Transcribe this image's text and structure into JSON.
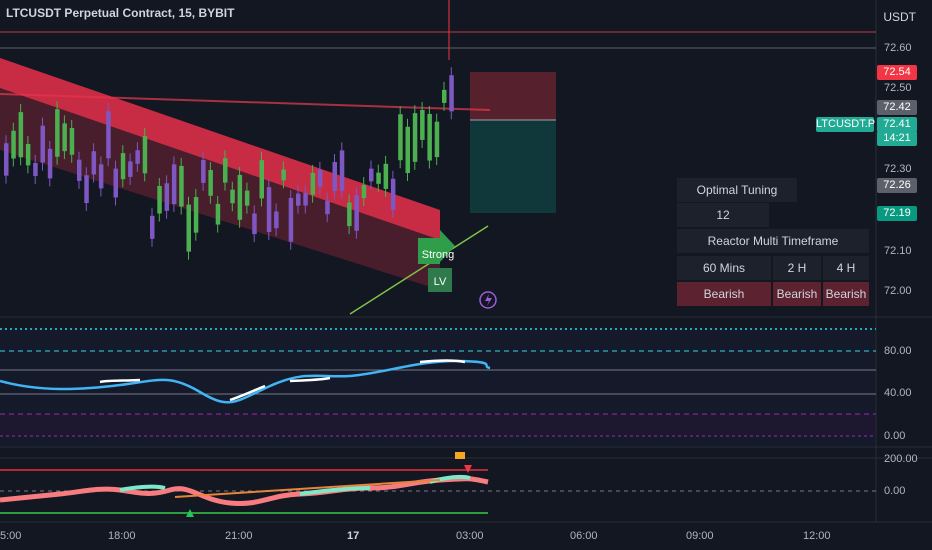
{
  "header": {
    "symbol_title": "LTCUSDT Perpetual Contract, 15, BYBIT",
    "currency": "USDT"
  },
  "price_axis": {
    "ticks": [
      "72.60",
      "72.50",
      "72.30",
      "72.10",
      "72.00"
    ],
    "tags": [
      {
        "label": "72.54",
        "color": "#f23645"
      },
      {
        "label": "72.42",
        "color": "#5d606b"
      },
      {
        "label": "72.41",
        "color": "#22ab94"
      },
      {
        "label": "14:21",
        "color": "#22ab94"
      },
      {
        "label": "72.26",
        "color": "#5d606b"
      },
      {
        "label": "72.19",
        "color": "#089981"
      }
    ],
    "symbol_tag": "LTCUSDT.P"
  },
  "oscillator_axis": {
    "ticks": [
      "80.00",
      "40.00",
      "0.00"
    ]
  },
  "lower_axis": {
    "ticks": [
      "200.00",
      "0.00"
    ]
  },
  "time_axis": {
    "ticks": [
      "5:00",
      "18:00",
      "21:00",
      "17",
      "03:00",
      "06:00",
      "09:00",
      "12:00"
    ]
  },
  "signals": {
    "strong": "Strong",
    "lv": "LV"
  },
  "table": {
    "title": "Optimal Tuning",
    "value": "12",
    "subtitle": "Reactor Multi Timeframe",
    "timeframes": [
      "60 Mins",
      "2 H",
      "4 H"
    ],
    "states": [
      "Bearish",
      "Bearish",
      "Bearish"
    ]
  },
  "colors": {
    "background": "#131722",
    "bull": "#4caf50",
    "bear": "#7e57c2",
    "channel": "#f23645",
    "accent": "#089981"
  }
}
